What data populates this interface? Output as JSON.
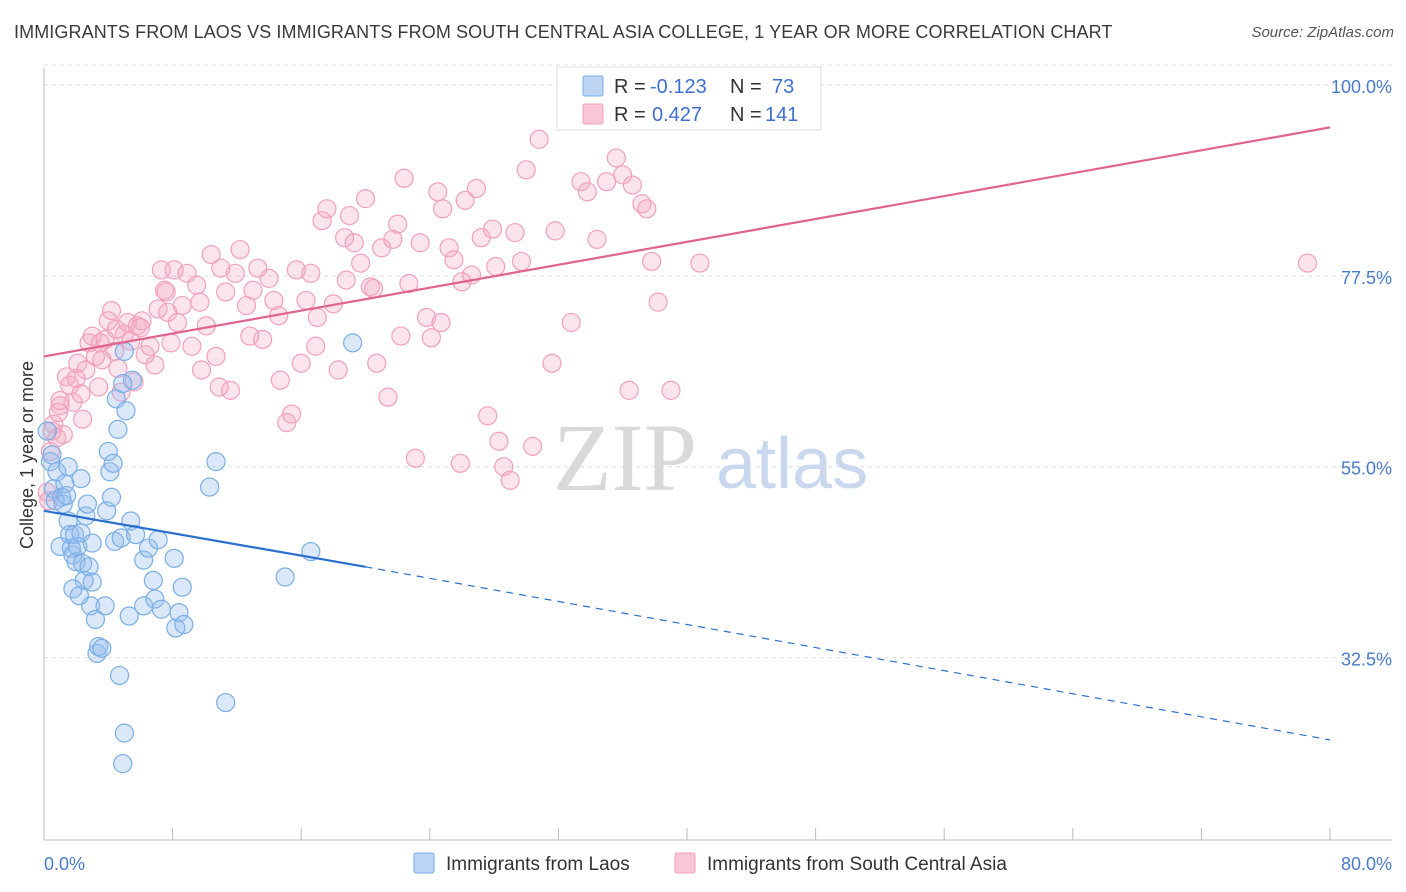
{
  "title": "IMMIGRANTS FROM LAOS VS IMMIGRANTS FROM SOUTH CENTRAL ASIA COLLEGE, 1 YEAR OR MORE CORRELATION CHART",
  "source": "Source: ZipAtlas.com",
  "watermark": {
    "zip": "ZIP",
    "atlas": "atlas"
  },
  "colors": {
    "laos": "#7aaee6",
    "laos_line": "#2b6fce",
    "sca": "#f2a0bb",
    "sca_line": "#e0648e",
    "axis_label": "#4a7bc8"
  },
  "legend": {
    "r_label": "R =",
    "n_label": "N =",
    "rows": [
      {
        "r": "-0.123",
        "n": "73"
      },
      {
        "r": "0.427",
        "n": "141"
      }
    ]
  },
  "chart_data": {
    "type": "scatter",
    "title": "IMMIGRANTS FROM LAOS VS IMMIGRANTS FROM SOUTH CENTRAL ASIA COLLEGE, 1 YEAR OR MORE CORRELATION CHART",
    "xlabel": "",
    "ylabel": "College, 1 year or more",
    "xlim": [
      0,
      80
    ],
    "ylim": [
      11,
      102
    ],
    "x_tick_labels": [
      "0.0%",
      "80.0%"
    ],
    "y_ticks": [
      {
        "value": 32.5,
        "label": "32.5%"
      },
      {
        "value": 55.0,
        "label": "55.0%"
      },
      {
        "value": 77.5,
        "label": "77.5%"
      },
      {
        "value": 100.0,
        "label": "100.0%"
      }
    ],
    "series": [
      {
        "name": "Immigrants from Laos",
        "r": -0.123,
        "n": 73,
        "trend": {
          "x0": 0,
          "y0": 49.8,
          "x1": 20,
          "y1": 43.2,
          "dashed_to_x": 80,
          "dashed_to_y": 22.8
        },
        "points": [
          [
            0.2,
            59.2
          ],
          [
            0.4,
            55.6
          ],
          [
            0.5,
            56.4
          ],
          [
            0.6,
            52.4
          ],
          [
            0.8,
            54.4
          ],
          [
            1.1,
            51.4
          ],
          [
            1.3,
            53.0
          ],
          [
            0.7,
            51.0
          ],
          [
            1.0,
            45.6
          ],
          [
            1.2,
            50.6
          ],
          [
            1.4,
            51.6
          ],
          [
            1.5,
            48.6
          ],
          [
            1.6,
            47.0
          ],
          [
            1.7,
            45.4
          ],
          [
            1.8,
            44.6
          ],
          [
            2.0,
            43.8
          ],
          [
            1.9,
            47.0
          ],
          [
            2.1,
            45.6
          ],
          [
            2.3,
            47.2
          ],
          [
            2.4,
            43.6
          ],
          [
            2.5,
            41.6
          ],
          [
            2.6,
            49.2
          ],
          [
            2.7,
            50.6
          ],
          [
            2.8,
            43.2
          ],
          [
            2.9,
            38.6
          ],
          [
            3.0,
            41.4
          ],
          [
            1.8,
            40.6
          ],
          [
            2.2,
            39.8
          ],
          [
            3.2,
            37.0
          ],
          [
            3.3,
            33.0
          ],
          [
            3.4,
            33.8
          ],
          [
            3.6,
            33.6
          ],
          [
            3.8,
            38.6
          ],
          [
            3.9,
            49.8
          ],
          [
            4.0,
            56.8
          ],
          [
            4.1,
            54.4
          ],
          [
            4.2,
            51.4
          ],
          [
            4.3,
            55.4
          ],
          [
            4.4,
            46.2
          ],
          [
            4.5,
            63.0
          ],
          [
            4.6,
            59.4
          ],
          [
            4.7,
            30.4
          ],
          [
            4.8,
            46.6
          ],
          [
            5.0,
            68.6
          ],
          [
            5.1,
            61.6
          ],
          [
            5.3,
            37.4
          ],
          [
            5.4,
            48.6
          ],
          [
            5.5,
            65.2
          ],
          [
            5.7,
            47.0
          ],
          [
            6.2,
            44.0
          ],
          [
            6.2,
            38.6
          ],
          [
            6.5,
            45.4
          ],
          [
            6.8,
            41.6
          ],
          [
            6.9,
            39.4
          ],
          [
            7.1,
            46.4
          ],
          [
            7.3,
            38.2
          ],
          [
            8.1,
            44.2
          ],
          [
            8.2,
            36.0
          ],
          [
            8.4,
            37.8
          ],
          [
            8.6,
            40.8
          ],
          [
            8.7,
            36.4
          ],
          [
            10.3,
            52.6
          ],
          [
            10.7,
            55.6
          ],
          [
            11.3,
            27.2
          ],
          [
            5.0,
            23.6
          ],
          [
            4.9,
            20.0
          ],
          [
            4.9,
            64.8
          ],
          [
            15.0,
            42.0
          ],
          [
            16.6,
            45.0
          ],
          [
            19.2,
            69.6
          ],
          [
            1.5,
            55.0
          ],
          [
            2.3,
            53.6
          ],
          [
            3.0,
            46.0
          ]
        ]
      },
      {
        "name": "Immigrants from South Central Asia",
        "r": 0.427,
        "n": 141,
        "trend": {
          "x0": 0,
          "y0": 68.0,
          "x1": 80,
          "y1": 95.0
        },
        "points": [
          [
            0.2,
            52.0
          ],
          [
            0.4,
            56.8
          ],
          [
            0.5,
            59.2
          ],
          [
            0.6,
            60.0
          ],
          [
            0.8,
            58.4
          ],
          [
            1.0,
            62.2
          ],
          [
            1.4,
            65.6
          ],
          [
            1.6,
            64.6
          ],
          [
            1.8,
            62.6
          ],
          [
            2.1,
            67.2
          ],
          [
            2.3,
            63.6
          ],
          [
            2.4,
            60.6
          ],
          [
            2.6,
            66.4
          ],
          [
            2.8,
            69.6
          ],
          [
            3.0,
            70.4
          ],
          [
            3.2,
            68.0
          ],
          [
            3.4,
            64.4
          ],
          [
            3.6,
            67.6
          ],
          [
            3.8,
            70.0
          ],
          [
            4.0,
            72.2
          ],
          [
            4.2,
            73.4
          ],
          [
            4.4,
            68.6
          ],
          [
            4.6,
            66.6
          ],
          [
            4.8,
            63.8
          ],
          [
            5.0,
            70.6
          ],
          [
            5.2,
            72.0
          ],
          [
            5.4,
            69.8
          ],
          [
            5.6,
            65.0
          ],
          [
            5.8,
            71.6
          ],
          [
            6.1,
            72.2
          ],
          [
            6.3,
            68.2
          ],
          [
            6.6,
            69.2
          ],
          [
            6.9,
            67.0
          ],
          [
            7.1,
            73.6
          ],
          [
            7.3,
            78.2
          ],
          [
            7.5,
            75.8
          ],
          [
            7.7,
            73.2
          ],
          [
            7.9,
            69.6
          ],
          [
            8.1,
            78.2
          ],
          [
            8.3,
            72.0
          ],
          [
            8.6,
            74.0
          ],
          [
            8.9,
            77.8
          ],
          [
            9.2,
            69.2
          ],
          [
            9.5,
            76.4
          ],
          [
            9.8,
            66.4
          ],
          [
            10.1,
            71.6
          ],
          [
            10.4,
            80.0
          ],
          [
            10.7,
            68.0
          ],
          [
            11.0,
            78.4
          ],
          [
            11.3,
            75.6
          ],
          [
            11.6,
            64.0
          ],
          [
            11.9,
            77.8
          ],
          [
            12.2,
            80.6
          ],
          [
            12.6,
            74.0
          ],
          [
            13.0,
            75.8
          ],
          [
            13.3,
            78.4
          ],
          [
            13.6,
            70.0
          ],
          [
            14.0,
            77.2
          ],
          [
            14.3,
            74.6
          ],
          [
            14.7,
            65.2
          ],
          [
            15.1,
            60.2
          ],
          [
            15.4,
            61.2
          ],
          [
            15.7,
            78.2
          ],
          [
            16.0,
            67.2
          ],
          [
            16.3,
            74.6
          ],
          [
            16.6,
            77.8
          ],
          [
            17.0,
            72.6
          ],
          [
            17.3,
            84.0
          ],
          [
            17.6,
            85.4
          ],
          [
            18.0,
            74.2
          ],
          [
            18.3,
            66.4
          ],
          [
            18.7,
            82.0
          ],
          [
            19.0,
            84.6
          ],
          [
            19.3,
            81.4
          ],
          [
            19.7,
            79.0
          ],
          [
            20.0,
            86.6
          ],
          [
            20.3,
            76.2
          ],
          [
            20.7,
            67.2
          ],
          [
            21.0,
            80.8
          ],
          [
            21.4,
            63.2
          ],
          [
            21.7,
            81.8
          ],
          [
            22.0,
            83.6
          ],
          [
            22.4,
            89.0
          ],
          [
            22.7,
            76.6
          ],
          [
            23.1,
            56.0
          ],
          [
            23.4,
            81.4
          ],
          [
            23.8,
            72.6
          ],
          [
            24.1,
            70.2
          ],
          [
            24.5,
            87.4
          ],
          [
            24.8,
            85.4
          ],
          [
            25.2,
            80.8
          ],
          [
            25.5,
            79.4
          ],
          [
            25.9,
            55.4
          ],
          [
            26.2,
            86.4
          ],
          [
            26.6,
            77.6
          ],
          [
            26.9,
            87.8
          ],
          [
            27.2,
            82.0
          ],
          [
            27.6,
            61.0
          ],
          [
            27.9,
            83.0
          ],
          [
            28.3,
            58.0
          ],
          [
            28.6,
            55.0
          ],
          [
            29.0,
            53.4
          ],
          [
            29.3,
            82.6
          ],
          [
            29.7,
            79.2
          ],
          [
            30.0,
            90.0
          ],
          [
            30.8,
            93.6
          ],
          [
            31.8,
            82.8
          ],
          [
            32.8,
            72.0
          ],
          [
            33.4,
            88.6
          ],
          [
            33.8,
            87.4
          ],
          [
            34.4,
            81.8
          ],
          [
            35.0,
            88.6
          ],
          [
            35.6,
            91.4
          ],
          [
            36.0,
            89.4
          ],
          [
            36.6,
            88.2
          ],
          [
            37.2,
            86.0
          ],
          [
            37.5,
            85.4
          ],
          [
            37.8,
            79.2
          ],
          [
            38.2,
            74.4
          ],
          [
            39.0,
            64.0
          ],
          [
            40.8,
            79.0
          ],
          [
            36.4,
            64.0
          ],
          [
            31.6,
            67.2
          ],
          [
            78.6,
            79.0
          ],
          [
            0.9,
            61.4
          ],
          [
            1.2,
            58.8
          ],
          [
            2.0,
            65.4
          ],
          [
            3.5,
            69.6
          ],
          [
            4.5,
            71.2
          ],
          [
            6.0,
            71.4
          ],
          [
            7.6,
            75.6
          ],
          [
            9.7,
            74.4
          ],
          [
            10.9,
            64.4
          ],
          [
            12.8,
            70.4
          ],
          [
            14.6,
            72.8
          ],
          [
            16.9,
            69.2
          ],
          [
            18.8,
            77.0
          ],
          [
            20.5,
            76.0
          ],
          [
            22.2,
            70.4
          ],
          [
            24.7,
            72.0
          ],
          [
            26.0,
            76.8
          ],
          [
            28.1,
            78.6
          ],
          [
            30.4,
            57.4
          ],
          [
            0.3,
            51.0
          ],
          [
            1.0,
            62.8
          ]
        ]
      }
    ],
    "legend_position": "top-center"
  },
  "bottom_legend": [
    {
      "label": "Immigrants from Laos"
    },
    {
      "label": "Immigrants from South Central Asia"
    }
  ]
}
